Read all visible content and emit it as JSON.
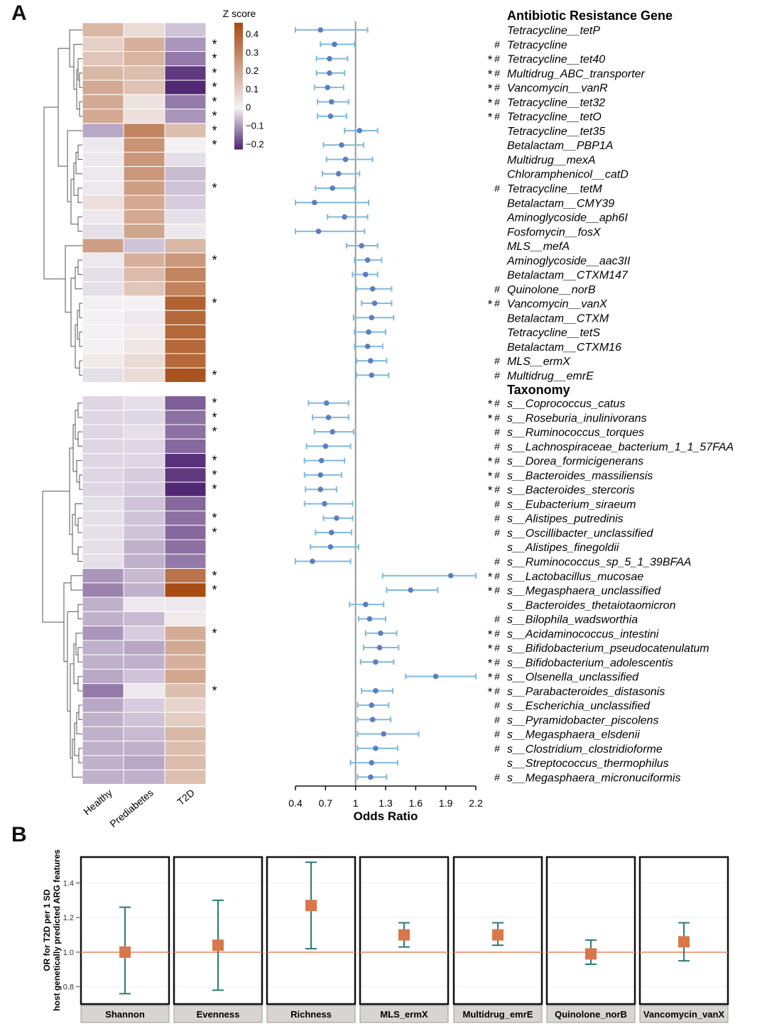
{
  "panel_a_label": "A",
  "panel_b_label": "B",
  "chart_data": [
    {
      "type": "heatmap",
      "colorbar_title": "Z score",
      "colorbar_ticks": [
        "0.4",
        "0.3",
        "0.2",
        "0.1",
        "0",
        "−0.1",
        "−0.2"
      ],
      "columns": [
        "Healthy",
        "Prediabetes",
        "T2D"
      ],
      "colors": {
        "low": "#4a1f6e",
        "mid": "#f4f1f4",
        "high": "#a84c14"
      },
      "values": [
        [
          0.16,
          0.06,
          -0.05
        ],
        [
          0.09,
          0.18,
          -0.1
        ],
        [
          0.12,
          0.17,
          -0.13
        ],
        [
          0.16,
          0.14,
          -0.2
        ],
        [
          0.2,
          0.13,
          -0.22
        ],
        [
          0.2,
          0.04,
          -0.13
        ],
        [
          0.2,
          0.05,
          -0.1
        ],
        [
          -0.08,
          0.3,
          0.14
        ],
        [
          -0.01,
          0.26,
          0.0
        ],
        [
          -0.01,
          0.25,
          -0.02
        ],
        [
          -0.01,
          0.25,
          -0.06
        ],
        [
          -0.01,
          0.23,
          -0.05
        ],
        [
          0.05,
          0.2,
          -0.04
        ],
        [
          -0.01,
          0.2,
          -0.02
        ],
        [
          -0.02,
          0.21,
          -0.01
        ],
        [
          0.23,
          -0.05,
          0.16
        ],
        [
          -0.01,
          0.18,
          0.25
        ],
        [
          -0.02,
          0.15,
          0.3
        ],
        [
          -0.02,
          0.12,
          0.31
        ],
        [
          0.0,
          0.0,
          0.4
        ],
        [
          0.0,
          -0.01,
          0.38
        ],
        [
          0.0,
          0.02,
          0.38
        ],
        [
          0.0,
          0.03,
          0.38
        ],
        [
          0.02,
          0.06,
          0.38
        ],
        [
          -0.02,
          0.06,
          0.44
        ],
        [
          -0.03,
          -0.02,
          -0.16
        ],
        [
          -0.03,
          -0.03,
          -0.14
        ],
        [
          -0.03,
          -0.02,
          -0.14
        ],
        [
          -0.03,
          -0.03,
          -0.15
        ],
        [
          -0.03,
          -0.03,
          -0.21
        ],
        [
          -0.03,
          -0.04,
          -0.2
        ],
        [
          -0.03,
          -0.04,
          -0.22
        ],
        [
          -0.02,
          -0.05,
          -0.15
        ],
        [
          -0.02,
          -0.05,
          -0.14
        ],
        [
          -0.02,
          -0.05,
          -0.15
        ],
        [
          -0.02,
          -0.07,
          -0.14
        ],
        [
          -0.02,
          -0.07,
          -0.13
        ],
        [
          -0.1,
          -0.06,
          0.35
        ],
        [
          -0.12,
          -0.07,
          0.46
        ],
        [
          -0.07,
          -0.01,
          -0.01
        ],
        [
          -0.07,
          -0.06,
          0.02
        ],
        [
          -0.1,
          -0.04,
          0.19
        ],
        [
          -0.07,
          -0.08,
          0.2
        ],
        [
          -0.07,
          -0.07,
          0.18
        ],
        [
          -0.08,
          -0.05,
          0.21
        ],
        [
          -0.13,
          -0.01,
          0.14
        ],
        [
          -0.08,
          -0.04,
          0.08
        ],
        [
          -0.07,
          -0.05,
          0.1
        ],
        [
          -0.07,
          -0.06,
          0.16
        ],
        [
          -0.07,
          -0.07,
          0.14
        ],
        [
          -0.07,
          -0.08,
          0.15
        ],
        [
          -0.07,
          -0.07,
          0.14
        ]
      ]
    },
    {
      "type": "scatter",
      "subtype": "forest",
      "xlabel": "Odds Ratio",
      "xlim": [
        0.4,
        2.2
      ],
      "xticks": [
        "0.4",
        "0.7",
        "1",
        "1.3",
        "1.6",
        "1.9",
        "2.2"
      ],
      "reference_line": 1,
      "color": "#7fb9dc",
      "groups": [
        {
          "title": "Antibiotic Resistance Gene",
          "rows": [
            {
              "label": "Tetracycline__tetP",
              "marks": "",
              "or": 0.65,
              "lo": 0.4,
              "hi": 1.12
            },
            {
              "label": "Tetracycline",
              "marks": "#",
              "or": 0.79,
              "lo": 0.65,
              "hi": 0.99
            },
            {
              "label": "Tetracycline__tet40",
              "marks": "*#",
              "or": 0.74,
              "lo": 0.61,
              "hi": 0.92
            },
            {
              "label": "Multidrug_ABC_transporter",
              "marks": "*#",
              "or": 0.74,
              "lo": 0.61,
              "hi": 0.89
            },
            {
              "label": "Vancomycin__vanR",
              "marks": "*#",
              "or": 0.72,
              "lo": 0.59,
              "hi": 0.88
            },
            {
              "label": "Tetracycline__tet32",
              "marks": "*#",
              "or": 0.76,
              "lo": 0.62,
              "hi": 0.93
            },
            {
              "label": "Tetracycline__tetO",
              "marks": "*#",
              "or": 0.75,
              "lo": 0.62,
              "hi": 0.91
            },
            {
              "label": "Tetracycline__tet35",
              "marks": "",
              "or": 1.04,
              "lo": 0.89,
              "hi": 1.22
            },
            {
              "label": "Betalactam__PBP1A",
              "marks": "",
              "or": 0.86,
              "lo": 0.68,
              "hi": 1.08
            },
            {
              "label": "Multidrug__mexA",
              "marks": "",
              "or": 0.9,
              "lo": 0.71,
              "hi": 1.17
            },
            {
              "label": "Chloramphenicol__catD",
              "marks": "",
              "or": 0.83,
              "lo": 0.67,
              "hi": 1.04
            },
            {
              "label": "Tetracycline__tetM",
              "marks": "#",
              "or": 0.77,
              "lo": 0.6,
              "hi": 0.99
            },
            {
              "label": "Betalactam__CMY39",
              "marks": "",
              "or": 0.59,
              "lo": 0.4,
              "hi": 1.13
            },
            {
              "label": "Aminoglycoside__aph6I",
              "marks": "",
              "or": 0.89,
              "lo": 0.72,
              "hi": 1.12
            },
            {
              "label": "Fosfomycin__fosX",
              "marks": "",
              "or": 0.63,
              "lo": 0.4,
              "hi": 1.09
            },
            {
              "label": "MLS__mefA",
              "marks": "",
              "or": 1.06,
              "lo": 0.91,
              "hi": 1.22
            },
            {
              "label": "Aminoglycoside__aac3II",
              "marks": "",
              "or": 1.12,
              "lo": 0.99,
              "hi": 1.26
            },
            {
              "label": "Betalactam__CTXM147",
              "marks": "",
              "or": 1.1,
              "lo": 0.97,
              "hi": 1.22
            },
            {
              "label": "Quinolone__norB",
              "marks": "#",
              "or": 1.17,
              "lo": 1.01,
              "hi": 1.36
            },
            {
              "label": "Vancomycin__vanX",
              "marks": "*#",
              "or": 1.19,
              "lo": 1.06,
              "hi": 1.36
            },
            {
              "label": "Betalactam__CTXM",
              "marks": "",
              "or": 1.16,
              "lo": 0.98,
              "hi": 1.38
            },
            {
              "label": "Tetracycline__tetS",
              "marks": "",
              "or": 1.13,
              "lo": 0.99,
              "hi": 1.3
            },
            {
              "label": "Betalactam__CTXM16",
              "marks": "",
              "or": 1.12,
              "lo": 0.99,
              "hi": 1.27
            },
            {
              "label": "MLS__ermX",
              "marks": "#",
              "or": 1.15,
              "lo": 1.01,
              "hi": 1.31
            },
            {
              "label": "Multidrug__emrE",
              "marks": "#",
              "or": 1.16,
              "lo": 1.01,
              "hi": 1.33
            }
          ]
        },
        {
          "title": "Taxonomy",
          "rows": [
            {
              "label": "s__Coprococcus_catus",
              "marks": "*#",
              "or": 0.71,
              "lo": 0.53,
              "hi": 0.93
            },
            {
              "label": "s__Roseburia_inulinivorans",
              "marks": "*#",
              "or": 0.73,
              "lo": 0.57,
              "hi": 0.93
            },
            {
              "label": "s__Ruminococcus_torques",
              "marks": "#",
              "or": 0.77,
              "lo": 0.59,
              "hi": 0.98
            },
            {
              "label": "s__Lachnospiraceae_bacterium_1_1_57FAA",
              "marks": "#",
              "or": 0.7,
              "lo": 0.51,
              "hi": 0.95
            },
            {
              "label": "s__Dorea_formicigenerans",
              "marks": "*#",
              "or": 0.66,
              "lo": 0.49,
              "hi": 0.89
            },
            {
              "label": "s__Bacteroides_massiliensis",
              "marks": "*#",
              "or": 0.65,
              "lo": 0.49,
              "hi": 0.86
            },
            {
              "label": "s__Bacteroides_stercoris",
              "marks": "*#",
              "or": 0.65,
              "lo": 0.5,
              "hi": 0.81
            },
            {
              "label": "s__Eubacterium_siraeum",
              "marks": "#",
              "or": 0.69,
              "lo": 0.49,
              "hi": 0.97
            },
            {
              "label": "s__Alistipes_putredinis",
              "marks": "#",
              "or": 0.81,
              "lo": 0.68,
              "hi": 0.97
            },
            {
              "label": "s__Oscillibacter_unclassified",
              "marks": "#",
              "or": 0.76,
              "lo": 0.6,
              "hi": 0.96
            },
            {
              "label": "s__Alistipes_finegoldii",
              "marks": "",
              "or": 0.75,
              "lo": 0.55,
              "hi": 1.03
            },
            {
              "label": "s__Ruminococcus_sp_5_1_39BFAA",
              "marks": "#",
              "or": 0.57,
              "lo": 0.4,
              "hi": 0.95
            },
            {
              "label": "s__Lactobacillus_mucosae",
              "marks": "*#",
              "or": 1.95,
              "lo": 1.27,
              "hi": 2.2
            },
            {
              "label": "s__Megasphaera_unclassified",
              "marks": "*#",
              "or": 1.55,
              "lo": 1.31,
              "hi": 1.82
            },
            {
              "label": "s__Bacteroides_thetaiotaomicron",
              "marks": "",
              "or": 1.1,
              "lo": 0.94,
              "hi": 1.28
            },
            {
              "label": "s__Bilophila_wadsworthia",
              "marks": "#",
              "or": 1.14,
              "lo": 1.03,
              "hi": 1.3
            },
            {
              "label": "s__Acidaminococcus_intestini",
              "marks": "*#",
              "or": 1.25,
              "lo": 1.1,
              "hi": 1.41
            },
            {
              "label": "s__Bifidobacterium_pseudocatenulatum",
              "marks": "*#",
              "or": 1.24,
              "lo": 1.08,
              "hi": 1.43
            },
            {
              "label": "s__Bifidobacterium_adolescentis",
              "marks": "*#",
              "or": 1.2,
              "lo": 1.05,
              "hi": 1.38
            },
            {
              "label": "s__Olsenella_unclassified",
              "marks": "*#",
              "or": 1.8,
              "lo": 1.5,
              "hi": 2.2
            },
            {
              "label": "s__Parabacteroides_distasonis",
              "marks": "*#",
              "or": 1.2,
              "lo": 1.06,
              "hi": 1.37
            },
            {
              "label": "s__Escherichia_unclassified",
              "marks": "#",
              "or": 1.16,
              "lo": 1.02,
              "hi": 1.33
            },
            {
              "label": "s__Pyramidobacter_piscolens",
              "marks": "#",
              "or": 1.17,
              "lo": 1.02,
              "hi": 1.35
            },
            {
              "label": "s__Megasphaera_elsdenii",
              "marks": "#",
              "or": 1.28,
              "lo": 1.02,
              "hi": 1.63
            },
            {
              "label": "s__Clostridium_clostridioforme",
              "marks": "#",
              "or": 1.2,
              "lo": 1.02,
              "hi": 1.42
            },
            {
              "label": "s__Streptococcus_thermophilus",
              "marks": "",
              "or": 1.16,
              "lo": 0.95,
              "hi": 1.42
            },
            {
              "label": "s__Megasphaera_micronuciformis",
              "marks": "#",
              "or": 1.15,
              "lo": 1.02,
              "hi": 1.31
            }
          ]
        }
      ]
    },
    {
      "type": "scatter",
      "subtype": "errorbar_facets",
      "ylabel": "OR for T2D per 1 SD host genetically predicted ARG features",
      "ylim": [
        0.7,
        1.55
      ],
      "yticks": [
        "1.4",
        "1.2",
        "1.0",
        "0.8"
      ],
      "reference_line": 1.0,
      "colors": {
        "point": "#d9774a",
        "bar": "#2e7a74",
        "ref": "#e8825a"
      },
      "facets": [
        {
          "name": "Shannon",
          "or": 1.0,
          "lo": 0.76,
          "hi": 1.26
        },
        {
          "name": "Evenness",
          "or": 1.04,
          "lo": 0.78,
          "hi": 1.3
        },
        {
          "name": "Richness",
          "or": 1.27,
          "lo": 1.02,
          "hi": 1.52
        },
        {
          "name": "MLS_ermX",
          "or": 1.1,
          "lo": 1.03,
          "hi": 1.17
        },
        {
          "name": "Multidrug_emrE",
          "or": 1.1,
          "lo": 1.04,
          "hi": 1.17
        },
        {
          "name": "Quinolone_norB",
          "or": 0.99,
          "lo": 0.93,
          "hi": 1.07
        },
        {
          "name": "Vancomycin_vanX",
          "or": 1.06,
          "lo": 0.95,
          "hi": 1.17
        }
      ]
    }
  ]
}
